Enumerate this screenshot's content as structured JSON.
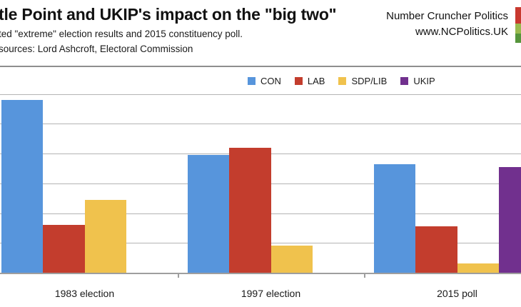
{
  "header": {
    "title": "tle Point and UKIP's impact on the \"big two\"",
    "subtitle": "ted \"extreme\" election results and 2015 constituency poll.",
    "sources": "sources: Lord Ashcroft, Electoral Commission",
    "brand_name": "Number Cruncher Politics",
    "brand_url": "www.NCPolitics.UK"
  },
  "logo": {
    "colors": [
      "#c8392f",
      "#9aba4e",
      "#56953c"
    ],
    "heights": [
      23,
      13.5,
      13.5
    ]
  },
  "chart_data": {
    "type": "bar",
    "title": "tle Point and UKIP's impact on the \"big two\"",
    "categories": [
      "1983 election",
      "1997 election",
      "2015 poll"
    ],
    "series": [
      {
        "name": "CON",
        "color": "#5795dc",
        "values": [
          58,
          39.5,
          36.5
        ]
      },
      {
        "name": "LAB",
        "color": "#c33d2d",
        "values": [
          16,
          42,
          15.5
        ]
      },
      {
        "name": "SDP/LIB",
        "color": "#f0c24d",
        "values": [
          24.5,
          9,
          3
        ]
      },
      {
        "name": "UKIP",
        "color": "#71308e",
        "values": [
          null,
          null,
          35.5
        ]
      }
    ],
    "ylabel": "",
    "xlabel": "",
    "ylim": [
      0,
      60
    ],
    "gridline_interval": 10,
    "grid": true,
    "y_tick_labels_visible": false,
    "legend_position": "top"
  }
}
